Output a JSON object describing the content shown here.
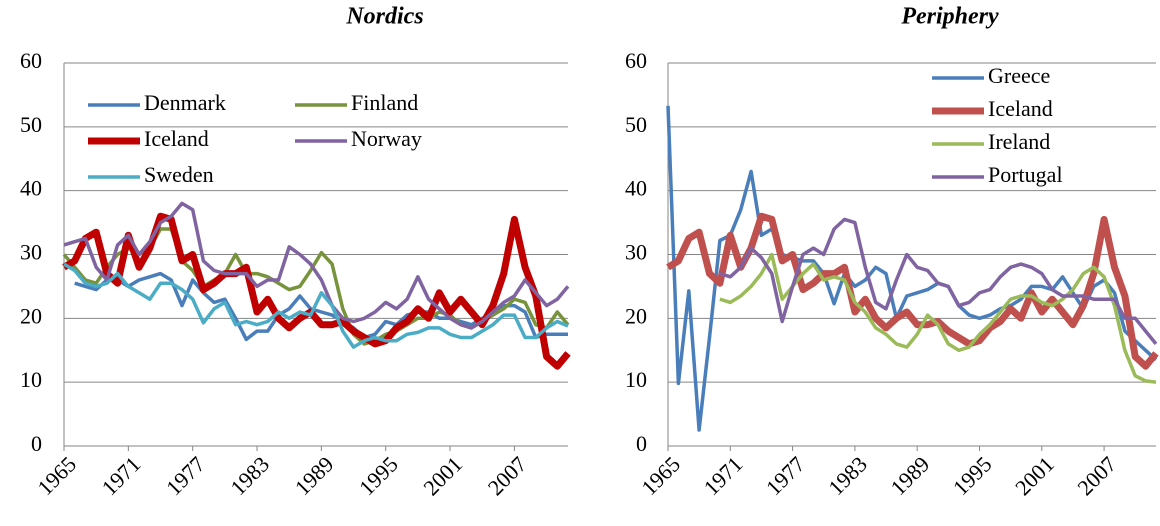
{
  "chart_data": [
    {
      "type": "line",
      "title": "Nordics",
      "x": [
        1965,
        1966,
        1967,
        1968,
        1969,
        1970,
        1971,
        1972,
        1973,
        1974,
        1975,
        1976,
        1977,
        1978,
        1979,
        1980,
        1981,
        1982,
        1983,
        1984,
        1985,
        1986,
        1987,
        1988,
        1989,
        1990,
        1991,
        1992,
        1993,
        1994,
        1995,
        1996,
        1997,
        1998,
        1999,
        2000,
        2001,
        2002,
        2003,
        2004,
        2005,
        2006,
        2007,
        2008,
        2009,
        2010,
        2011,
        2012
      ],
      "xlim": [
        1965,
        2012
      ],
      "xticks": [
        1965,
        1971,
        1977,
        1983,
        1989,
        1995,
        2001,
        2007
      ],
      "ylim": [
        0,
        60
      ],
      "yticks": [
        0,
        10,
        20,
        30,
        40,
        50,
        60
      ],
      "grid": true,
      "legend": "upper left",
      "legend_columns": 2,
      "series": [
        {
          "name": "Denmark",
          "color": "#4a7ebb",
          "line_width": 3.5,
          "values": [
            null,
            25.5,
            25,
            24.5,
            26,
            26,
            25,
            26,
            26.5,
            27,
            26,
            22,
            26,
            24,
            22.5,
            23,
            20,
            16.7,
            18,
            18,
            20.5,
            21.5,
            23.5,
            21.5,
            21,
            20.5,
            19.5,
            18.5,
            17,
            17.5,
            19.5,
            19,
            20.5,
            21,
            21,
            20,
            20,
            19.5,
            19,
            20,
            20.5,
            22,
            22,
            21,
            17,
            17.5,
            17.5,
            17.5
          ]
        },
        {
          "name": "Finland",
          "color": "#77933c",
          "line_width": 3.5,
          "values": [
            30,
            28,
            26,
            25.5,
            28,
            30,
            31,
            30,
            31,
            34,
            34,
            29,
            27.5,
            25,
            26,
            27,
            30,
            27,
            27,
            26.5,
            25.5,
            24.5,
            25,
            27.5,
            30.3,
            28.5,
            21.5,
            17.5,
            16,
            16.5,
            17.5,
            18,
            19,
            20,
            20,
            21,
            20.5,
            19,
            18.5,
            19.5,
            20.5,
            21.5,
            23,
            22.5,
            19,
            18.5,
            21,
            19
          ]
        },
        {
          "name": "Iceland",
          "color": "#c00000",
          "line_width": 7,
          "values": [
            28,
            29,
            32.5,
            33.5,
            27,
            25.5,
            33,
            28,
            31,
            36,
            35.5,
            29,
            30,
            24.5,
            25.5,
            27,
            27,
            28,
            21,
            23,
            20,
            18.5,
            20,
            21,
            19,
            19,
            19.5,
            18,
            17,
            16,
            16.5,
            18.5,
            19.5,
            21.5,
            20,
            24,
            21,
            23,
            21,
            19,
            22,
            27,
            35.5,
            28,
            23.5,
            14,
            12.5,
            14.5
          ]
        },
        {
          "name": "Norway",
          "color": "#8064a2",
          "line_width": 3.5,
          "values": [
            31.5,
            32,
            32.5,
            28,
            26,
            31.5,
            33,
            30,
            32,
            35,
            36,
            38,
            37,
            29,
            27.5,
            27,
            27,
            27,
            25,
            26,
            26,
            31.2,
            30,
            28.5,
            26,
            22,
            20,
            19.5,
            20,
            21,
            22.5,
            21.5,
            23,
            26.5,
            23,
            21.5,
            20,
            19,
            18.5,
            19.5,
            21,
            22.5,
            23.5,
            26,
            24,
            22,
            23,
            25
          ]
        },
        {
          "name": "Sweden",
          "color": "#4bacc6",
          "line_width": 3.5,
          "values": [
            28.5,
            27.5,
            25.5,
            25,
            25.5,
            27,
            25,
            24,
            23,
            25.5,
            25.5,
            24.5,
            23,
            19.3,
            21.5,
            22.5,
            19,
            19.5,
            19,
            19.5,
            21,
            20,
            21,
            20.5,
            24,
            22,
            18,
            15.5,
            16.5,
            17,
            16.5,
            16.5,
            17.5,
            17.8,
            18.5,
            18.5,
            17.5,
            17,
            17,
            18,
            19,
            20.5,
            20.5,
            17,
            17,
            18.5,
            19.5,
            18.8
          ]
        }
      ]
    },
    {
      "type": "line",
      "title": "Periphery",
      "x": [
        1965,
        1966,
        1967,
        1968,
        1969,
        1970,
        1971,
        1972,
        1973,
        1974,
        1975,
        1976,
        1977,
        1978,
        1979,
        1980,
        1981,
        1982,
        1983,
        1984,
        1985,
        1986,
        1987,
        1988,
        1989,
        1990,
        1991,
        1992,
        1993,
        1994,
        1995,
        1996,
        1997,
        1998,
        1999,
        2000,
        2001,
        2002,
        2003,
        2004,
        2005,
        2006,
        2007,
        2008,
        2009,
        2010,
        2011,
        2012
      ],
      "xlim": [
        1965,
        2012
      ],
      "xticks": [
        1965,
        1971,
        1977,
        1983,
        1989,
        1995,
        2001,
        2007
      ],
      "ylim": [
        0,
        60
      ],
      "yticks": [
        0,
        10,
        20,
        30,
        40,
        50,
        60
      ],
      "grid": true,
      "legend": "upper right",
      "legend_columns": 1,
      "series": [
        {
          "name": "Greece",
          "color": "#4a7ebb",
          "line_width": 3.5,
          "values": [
            53.3,
            9.8,
            24.3,
            2.5,
            17,
            32.2,
            33,
            37,
            43,
            33,
            34,
            30,
            29.5,
            29,
            29,
            27,
            22.3,
            27,
            25,
            26,
            28,
            27,
            20,
            23.5,
            24,
            24.5,
            25.5,
            25,
            22,
            20.5,
            20,
            20.5,
            21.5,
            22,
            23,
            25,
            25,
            24.5,
            26.5,
            24,
            21.5,
            25,
            26,
            24,
            18,
            16.5,
            15,
            13.5
          ]
        },
        {
          "name": "Iceland",
          "color": "#c0504d",
          "line_width": 7,
          "values": [
            28,
            29,
            32.5,
            33.5,
            27,
            25.5,
            33,
            28,
            31,
            36,
            35.5,
            29,
            30,
            24.5,
            25.5,
            27,
            27,
            28,
            21,
            23,
            20,
            18.5,
            20,
            21,
            19,
            19,
            19.5,
            18,
            17,
            16,
            16.5,
            18.5,
            19.5,
            21.5,
            20,
            24,
            21,
            23,
            21,
            19,
            22,
            27,
            35.5,
            28,
            23.5,
            14,
            12.5,
            14.5
          ]
        },
        {
          "name": "Ireland",
          "color": "#9bbb59",
          "line_width": 3.5,
          "values": [
            null,
            null,
            null,
            null,
            null,
            23,
            22.5,
            23.5,
            25,
            27,
            30,
            23,
            25,
            27,
            28.5,
            26,
            26.5,
            26,
            22.5,
            21,
            18.5,
            17.5,
            16,
            15.5,
            17.5,
            20.5,
            19,
            16,
            15,
            15.5,
            17.5,
            19,
            21,
            23,
            23.5,
            23.5,
            22.5,
            22,
            23,
            24.5,
            27,
            28,
            26.5,
            22,
            15,
            11,
            10.2,
            10
          ]
        },
        {
          "name": "Portugal",
          "color": "#8064a2",
          "line_width": 3.5,
          "values": [
            null,
            null,
            null,
            null,
            null,
            27,
            26.5,
            28,
            31,
            29.5,
            27,
            19.5,
            25,
            30,
            31,
            30,
            34,
            35.5,
            35,
            28,
            22.5,
            21.5,
            26,
            30,
            28,
            27.5,
            25.5,
            25,
            22,
            22.5,
            24,
            24.5,
            26.5,
            28,
            28.5,
            28,
            27,
            24.5,
            23.5,
            23.5,
            23.5,
            23,
            23,
            23,
            20,
            20,
            18,
            16
          ]
        }
      ]
    }
  ]
}
